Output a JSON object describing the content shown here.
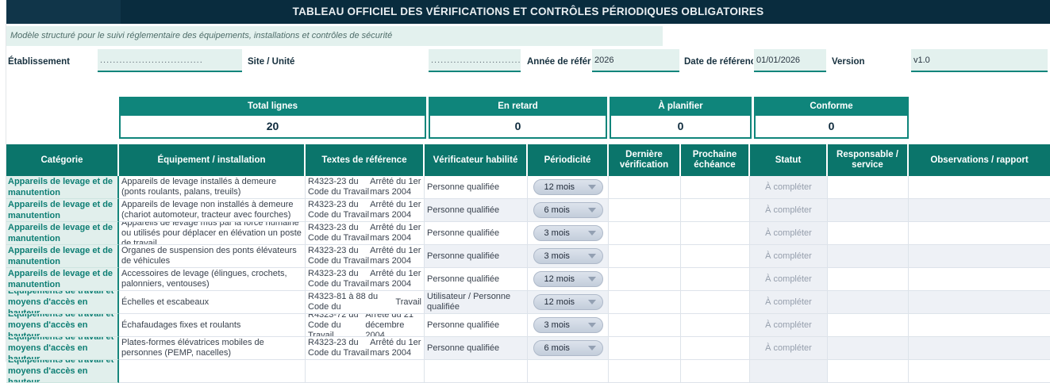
{
  "window": {
    "title": "TABLEAU OFFICIEL DES VÉRIFICATIONS ET CONTRÔLES PÉRIODIQUES OBLIGATOIRES",
    "subtitle": "Modèle structuré pour le suivi réglementaire des équipements, installations et contrôles de sécurité"
  },
  "fields": [
    {
      "label": "Établissement",
      "value": "................................"
    },
    {
      "label": "Site / Unité",
      "value": "................................"
    },
    {
      "label": "Année de référence",
      "value": "2026"
    },
    {
      "label": "Date de référence",
      "value": "01/01/2026"
    },
    {
      "label": "Version",
      "value": "v1.0"
    }
  ],
  "summary": [
    {
      "label": "Total lignes",
      "value": "20"
    },
    {
      "label": "En retard",
      "value": "0"
    },
    {
      "label": "À planifier",
      "value": "0"
    },
    {
      "label": "Conforme",
      "value": "0"
    }
  ],
  "table": {
    "headers": [
      "Catégorie",
      "Équipement / installation",
      "Textes de référence",
      "Vérificateur habilité",
      "Périodicité",
      "Dernière vérification",
      "Prochaine échéance",
      "Statut",
      "Responsable / service",
      "Observations / rapport"
    ],
    "rows": [
      {
        "category": "Appareils de levage et de manutention",
        "equipment": "Appareils de levage installés à demeure (ponts roulants, palans, treuils)",
        "textes": [
          "R4323-23 du Code du Travail",
          "Arrêté du 1er mars 2004"
        ],
        "verificateur": "Personne qualifiée",
        "periodicite": "12 mois",
        "derniere": "",
        "prochaine": "",
        "statut": "À compléter",
        "responsable": "",
        "observations": ""
      },
      {
        "category": "Appareils de levage et de manutention",
        "equipment": "Appareils de levage non installés à demeure (chariot automoteur, tracteur avec fourches)",
        "textes": [
          "R4323-23 du Code du Travail",
          "Arrêté du 1er mars 2004"
        ],
        "verificateur": "Personne qualifiée",
        "periodicite": "6 mois",
        "derniere": "",
        "prochaine": "",
        "statut": "À compléter",
        "responsable": "",
        "observations": ""
      },
      {
        "category": "Appareils de levage et de manutention",
        "equipment": "Appareils de levage mus par la force humaine ou utilisés pour déplacer en élévation un poste de travail",
        "textes": [
          "R4323-23 du Code du Travail",
          "Arrêté du 1er mars 2004"
        ],
        "verificateur": "Personne qualifiée",
        "periodicite": "3 mois",
        "derniere": "",
        "prochaine": "",
        "statut": "À compléter",
        "responsable": "",
        "observations": ""
      },
      {
        "category": "Appareils de levage et de manutention",
        "equipment": "Organes de suspension des ponts élévateurs de véhicules",
        "textes": [
          "R4323-23 du Code du Travail",
          "Arrêté du 1er mars 2004"
        ],
        "verificateur": "Personne qualifiée",
        "periodicite": "3 mois",
        "derniere": "",
        "prochaine": "",
        "statut": "À compléter",
        "responsable": "",
        "observations": ""
      },
      {
        "category": "Appareils de levage et de manutention",
        "equipment": "Accessoires de levage (élingues, crochets, palonniers, ventouses)",
        "textes": [
          "R4323-23 du Code du Travail",
          "Arrêté du 1er mars 2004"
        ],
        "verificateur": "Personne qualifiée",
        "periodicite": "12 mois",
        "derniere": "",
        "prochaine": "",
        "statut": "À compléter",
        "responsable": "",
        "observations": ""
      },
      {
        "category": "Équipements de travail et moyens d'accès en hauteur",
        "equipment": "Échelles et escabeaux",
        "textes": [
          "R4323-81 à 88 du Code du",
          "Travail"
        ],
        "verificateur": "Utilisateur / Personne qualifiée",
        "periodicite": "12 mois",
        "derniere": "",
        "prochaine": "",
        "statut": "À compléter",
        "responsable": "",
        "observations": ""
      },
      {
        "category": "Équipements de travail et moyens d'accès en hauteur",
        "equipment": "Échafaudages fixes et roulants",
        "textes": [
          "R4323-72 du Code du Travail",
          "Arrêté du 21 décembre 2004"
        ],
        "verificateur": "Personne qualifiée",
        "periodicite": "3 mois",
        "derniere": "",
        "prochaine": "",
        "statut": "À compléter",
        "responsable": "",
        "observations": ""
      },
      {
        "category": "Équipements de travail et moyens d'accès en hauteur",
        "equipment": "Plates-formes élévatrices mobiles de personnes (PEMP, nacelles)",
        "textes": [
          "R4323-23 du Code du Travail",
          "Arrêté du 1er mars 2004"
        ],
        "verificateur": "Personne qualifiée",
        "periodicite": "6 mois",
        "derniere": "",
        "prochaine": "",
        "statut": "À compléter",
        "responsable": "",
        "observations": ""
      },
      {
        "category": "Équipements de travail et moyens d'accès en hauteur",
        "equipment": "",
        "textes": [],
        "verificateur": "",
        "periodicite": "",
        "derniere": "",
        "prochaine": "",
        "statut": "",
        "responsable": "",
        "observations": ""
      }
    ]
  },
  "colors": {
    "accent_teal": "#0F857B",
    "header_teal": "#0B756B",
    "navy": "#092C3E",
    "navy_light": "#103549",
    "mint": "#E3F1EE",
    "category_text": "#0D7E74",
    "alt_row": "#EEF1F6",
    "statut_bg": "#EDF0F5",
    "statut_text": "#959EAC"
  }
}
